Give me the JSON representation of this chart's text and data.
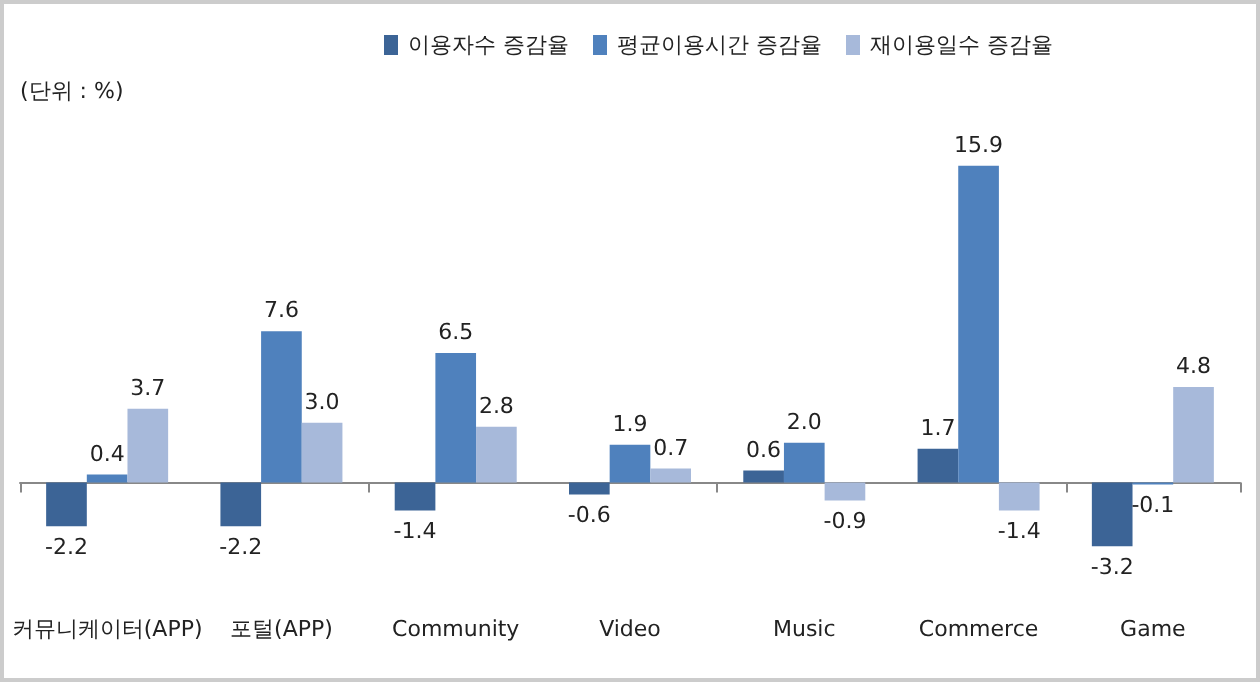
{
  "chart_data": {
    "type": "bar",
    "categories": [
      "커뮤니케이터(APP)",
      "포털(APP)",
      "Community",
      "Video",
      "Music",
      "Commerce",
      "Game"
    ],
    "series": [
      {
        "name": "이용자수 증감율",
        "color": "#3c6496",
        "values": [
          -2.2,
          -2.2,
          -1.4,
          -0.6,
          0.6,
          1.7,
          -3.2
        ],
        "value_labels": [
          "-2.2",
          "-2.2",
          "-1.4",
          "-0.6",
          "0.6",
          "1.7",
          "-3.2"
        ]
      },
      {
        "name": "평균이용시간 증감율",
        "color": "#4f81bd",
        "values": [
          0.4,
          7.6,
          6.5,
          1.9,
          2.0,
          15.9,
          -0.1
        ],
        "value_labels": [
          "0.4",
          "7.6",
          "6.5",
          "1.9",
          "2.0",
          "15.9",
          "-0.1"
        ]
      },
      {
        "name": "재이용일수 증감율",
        "color": "#a7b9da",
        "values": [
          3.7,
          3.0,
          2.8,
          0.7,
          -0.9,
          -1.4,
          4.8
        ],
        "value_labels": [
          "3.7",
          "3.0",
          "2.8",
          "0.7",
          "-0.9",
          "-1.4",
          "4.8"
        ]
      }
    ],
    "annotations": [
      "(단위 : %)"
    ],
    "legend": "top",
    "grid": false,
    "tick_labels": "x"
  }
}
